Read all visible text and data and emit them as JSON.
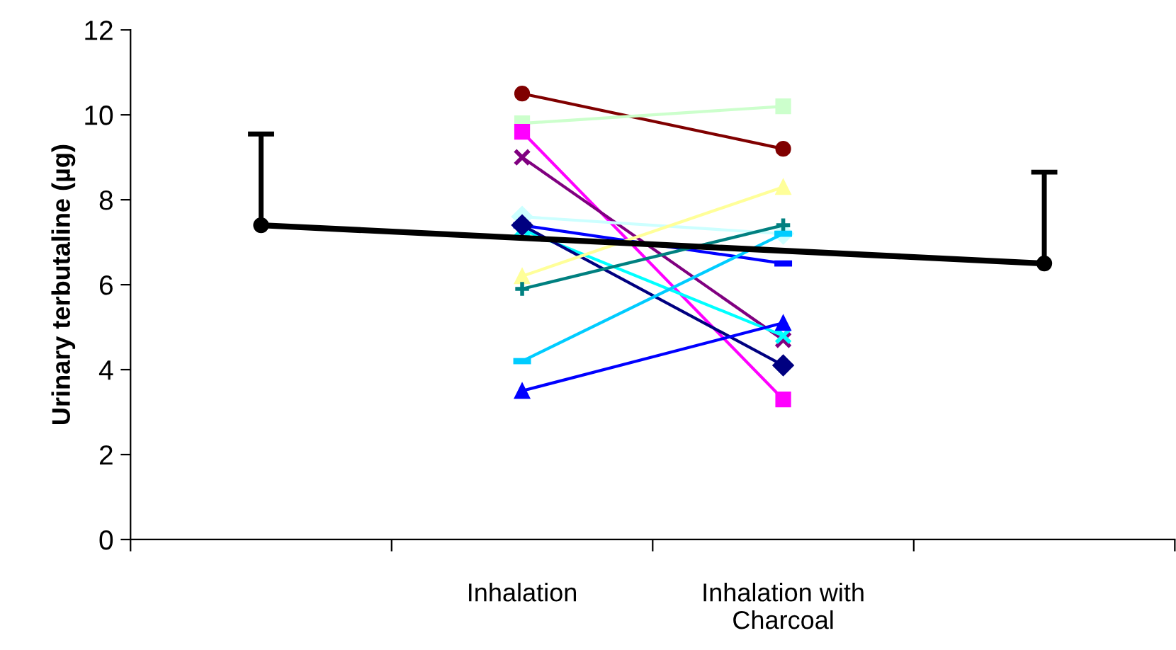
{
  "chart_data": {
    "type": "line",
    "ylabel": "Urinary terbutaline (µg)",
    "categories": [
      null,
      "Inhalation",
      "Inhalation with\nCharcoal",
      null
    ],
    "ylim": [
      0,
      12
    ],
    "yticks": [
      0,
      2,
      4,
      6,
      8,
      10,
      12
    ],
    "grid": false,
    "legend": false,
    "series": [
      {
        "color": "#800000",
        "marker": "circle",
        "values": [
          null,
          10.5,
          9.2,
          null
        ]
      },
      {
        "color": "#ccffcc",
        "marker": "square",
        "values": [
          null,
          9.8,
          10.2,
          null
        ]
      },
      {
        "color": "#ff00ff",
        "marker": "square",
        "values": [
          null,
          9.6,
          3.3,
          null
        ]
      },
      {
        "color": "#800080",
        "marker": "cross",
        "values": [
          null,
          9.0,
          4.7,
          null
        ]
      },
      {
        "color": "#ccffff",
        "marker": "diamond",
        "values": [
          null,
          7.6,
          7.2,
          null
        ]
      },
      {
        "color": "#0000ff",
        "marker": "square",
        "values": [
          null,
          7.4,
          6.5,
          null
        ]
      },
      {
        "color": "#00ffff",
        "marker": "cross",
        "values": [
          null,
          7.3,
          4.8,
          null
        ]
      },
      {
        "color": "#000080",
        "marker": "diamond",
        "values": [
          null,
          7.4,
          4.1,
          null
        ]
      },
      {
        "color": "#ffff99",
        "marker": "triangle",
        "values": [
          null,
          6.2,
          8.3,
          null
        ]
      },
      {
        "color": "#008080",
        "marker": "plus",
        "values": [
          null,
          5.9,
          7.4,
          null
        ]
      },
      {
        "color": "#00ccff",
        "marker": "square",
        "values": [
          null,
          4.2,
          7.2,
          null
        ]
      },
      {
        "color": "#0000ff",
        "marker": "triangle",
        "values": [
          null,
          3.5,
          5.1,
          null
        ]
      },
      {
        "color": "#000000",
        "marker": "circle",
        "values": [
          7.4,
          null,
          null,
          6.5
        ],
        "errors": [
          [
            7.4,
            9.55
          ],
          null,
          null,
          [
            6.5,
            8.65
          ]
        ]
      }
    ]
  }
}
